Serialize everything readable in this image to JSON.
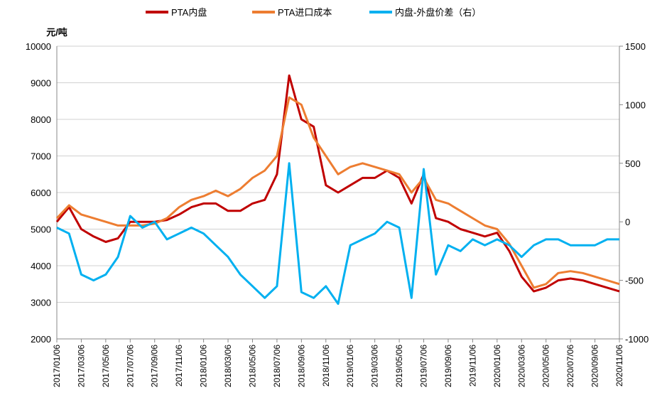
{
  "chart_data": {
    "type": "line",
    "y_label": "元/吨",
    "categories": [
      "2017/01/06",
      null,
      "2017/03/06",
      null,
      "2017/05/06",
      null,
      "2017/07/06",
      null,
      "2017/09/06",
      null,
      "2017/11/06",
      null,
      "2018/01/06",
      null,
      "2018/03/06",
      null,
      "2018/05/06",
      null,
      "2018/07/06",
      null,
      "2018/09/06",
      null,
      "2018/11/06",
      null,
      "2019/01/06",
      null,
      "2019/03/06",
      null,
      "2019/05/06",
      null,
      "2019/07/06",
      null,
      "2019/09/06",
      null,
      "2019/11/06",
      null,
      "2020/01/06",
      null,
      "2020/03/06",
      null,
      "2020/05/06",
      null,
      "2020/07/06",
      null,
      "2020/09/06",
      null,
      "2020/11/06"
    ],
    "series": [
      {
        "name": "PTA内盘",
        "color": "#c00000",
        "values": [
          5200,
          5600,
          5000,
          4800,
          4650,
          4750,
          5200,
          5200,
          5200,
          5250,
          5400,
          5600,
          5700,
          5700,
          5500,
          5500,
          5700,
          5800,
          6500,
          9200,
          8000,
          7800,
          6200,
          6000,
          6200,
          6400,
          6400,
          6600,
          6400,
          5700,
          6500,
          5300,
          5200,
          5000,
          4900,
          4800,
          4900,
          4400,
          3700,
          3300,
          3400,
          3600,
          3650,
          3600,
          3500,
          3400,
          3300
        ]
      },
      {
        "name": "PTA进口成本",
        "color": "#ed7d31",
        "values": [
          5300,
          5650,
          5400,
          5300,
          5200,
          5100,
          5100,
          5100,
          5150,
          5300,
          5600,
          5800,
          5900,
          6050,
          5900,
          6100,
          6400,
          6600,
          7000,
          8600,
          8400,
          7500,
          7000,
          6500,
          6700,
          6800,
          6700,
          6600,
          6500,
          6000,
          6400,
          5800,
          5700,
          5500,
          5300,
          5100,
          5000,
          4600,
          4000,
          3400,
          3500,
          3800,
          3850,
          3800,
          3700,
          3600,
          3500
        ]
      },
      {
        "name": "内盘-外盘价差（右）",
        "color": "#00b0f0",
        "axis": "y2",
        "values": [
          -50,
          -100,
          -450,
          -500,
          -450,
          -300,
          50,
          -50,
          0,
          -150,
          -100,
          -50,
          -100,
          -200,
          -300,
          -450,
          -550,
          -650,
          -550,
          500,
          -600,
          -650,
          -550,
          -700,
          -200,
          -150,
          -100,
          0,
          -50,
          -650,
          450,
          -450,
          -200,
          -250,
          -150,
          -200,
          -150,
          -200,
          -300,
          -200,
          -150,
          -150,
          -200,
          -200,
          -200,
          -150,
          -150
        ]
      }
    ],
    "ylim": [
      2000,
      10000
    ],
    "yticks": [
      2000,
      3000,
      4000,
      5000,
      6000,
      7000,
      8000,
      9000,
      10000
    ],
    "y2lim": [
      -1000,
      1500
    ],
    "y2ticks": [
      -1000,
      -500,
      0,
      500,
      1000,
      1500
    ],
    "grid": true
  }
}
